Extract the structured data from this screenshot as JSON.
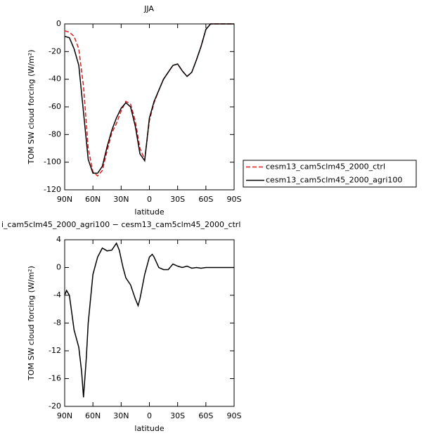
{
  "chart_data": [
    {
      "type": "line",
      "title": "JJA",
      "xlabel": "latitude",
      "ylabel": "TOM SW cloud forcing (W/m²)",
      "x": [
        90,
        85,
        80,
        75,
        70,
        65,
        60,
        55,
        50,
        45,
        40,
        35,
        30,
        25,
        20,
        15,
        10,
        5,
        0,
        -5,
        -10,
        -15,
        -20,
        -25,
        -30,
        -35,
        -40,
        -45,
        -50,
        -55,
        -60,
        -65,
        -70,
        -75,
        -80,
        -85,
        -90
      ],
      "series": [
        {
          "name": "cesm13_cam5clm45_2000_ctrl",
          "color": "#e41a1c",
          "line_style": "dashed",
          "values": [
            -5,
            -6,
            -9,
            -18,
            -45,
            -90,
            -107,
            -110,
            -106,
            -92,
            -79,
            -72,
            -63,
            -56,
            -58,
            -70,
            -90,
            -98,
            -70,
            -57,
            -48,
            -40,
            -35,
            -30,
            -29,
            -34,
            -38,
            -35,
            -26,
            -16,
            -4,
            0,
            0,
            0,
            0,
            0,
            0
          ]
        },
        {
          "name": "cesm13_cam5clm45_2000_agri100",
          "color": "#000000",
          "line_style": "solid",
          "values": [
            -9,
            -10,
            -18,
            -30,
            -64,
            -98,
            -108,
            -108,
            -103,
            -89,
            -77,
            -68,
            -61,
            -57,
            -60,
            -74,
            -94,
            -99,
            -68,
            -56,
            -48,
            -40,
            -35,
            -30,
            -29,
            -34,
            -38,
            -35,
            -26,
            -16,
            -4,
            0,
            0,
            0,
            0,
            0,
            0
          ]
        }
      ],
      "xlim": [
        90,
        -90
      ],
      "ylim": [
        -120,
        0
      ],
      "xticks": [
        {
          "value": 90,
          "label": "90N"
        },
        {
          "value": 60,
          "label": "60N"
        },
        {
          "value": 30,
          "label": "30N"
        },
        0,
        {
          "value": -30,
          "label": "30S"
        },
        {
          "value": -60,
          "label": "60S"
        },
        {
          "value": -90,
          "label": "90S"
        }
      ],
      "yticks": [
        0,
        -20,
        -40,
        -60,
        -80,
        -100,
        -120
      ],
      "legend": "right"
    },
    {
      "type": "line",
      "title": "i_cam5clm45_2000_agri100 − cesm13_cam5clm45_2000_ctrl",
      "xlabel": "latitude",
      "ylabel": "TOM SW cloud forcing (W/m²)",
      "x": [
        90,
        88,
        85,
        80,
        75,
        72,
        70,
        67,
        65,
        60,
        55,
        50,
        45,
        40,
        35,
        32,
        28,
        25,
        20,
        15,
        12,
        10,
        5,
        2,
        0,
        -3,
        -5,
        -10,
        -15,
        -20,
        -25,
        -30,
        -35,
        -40,
        -45,
        -50,
        -55,
        -60,
        -65,
        -70,
        -75,
        -80,
        -85,
        -90
      ],
      "series": [
        {
          "color": "#000000",
          "line_style": "solid",
          "values": [
            -4,
            -3.3,
            -4,
            -9,
            -11.5,
            -15,
            -18.7,
            -13,
            -8,
            -1,
            1.5,
            2.8,
            2.4,
            2.5,
            3.5,
            2.5,
            0,
            -1.5,
            -2.5,
            -4.5,
            -5.5,
            -4.5,
            -1,
            0.5,
            1.5,
            1.9,
            1.5,
            0,
            -0.3,
            -0.3,
            0.5,
            0.2,
            0,
            0.2,
            -0.1,
            0,
            -0.1,
            0,
            0,
            0,
            0,
            0,
            0,
            0
          ]
        }
      ],
      "xlim": [
        90,
        -90
      ],
      "ylim": [
        -20,
        4
      ],
      "xticks": [
        {
          "value": 90,
          "label": "90N"
        },
        {
          "value": 60,
          "label": "60N"
        },
        {
          "value": 30,
          "label": "30N"
        },
        0,
        {
          "value": -30,
          "label": "30S"
        },
        {
          "value": -60,
          "label": "60S"
        },
        {
          "value": -90,
          "label": "90S"
        }
      ],
      "yticks": [
        4,
        0,
        -4,
        -8,
        -12,
        -16,
        -20
      ]
    }
  ]
}
